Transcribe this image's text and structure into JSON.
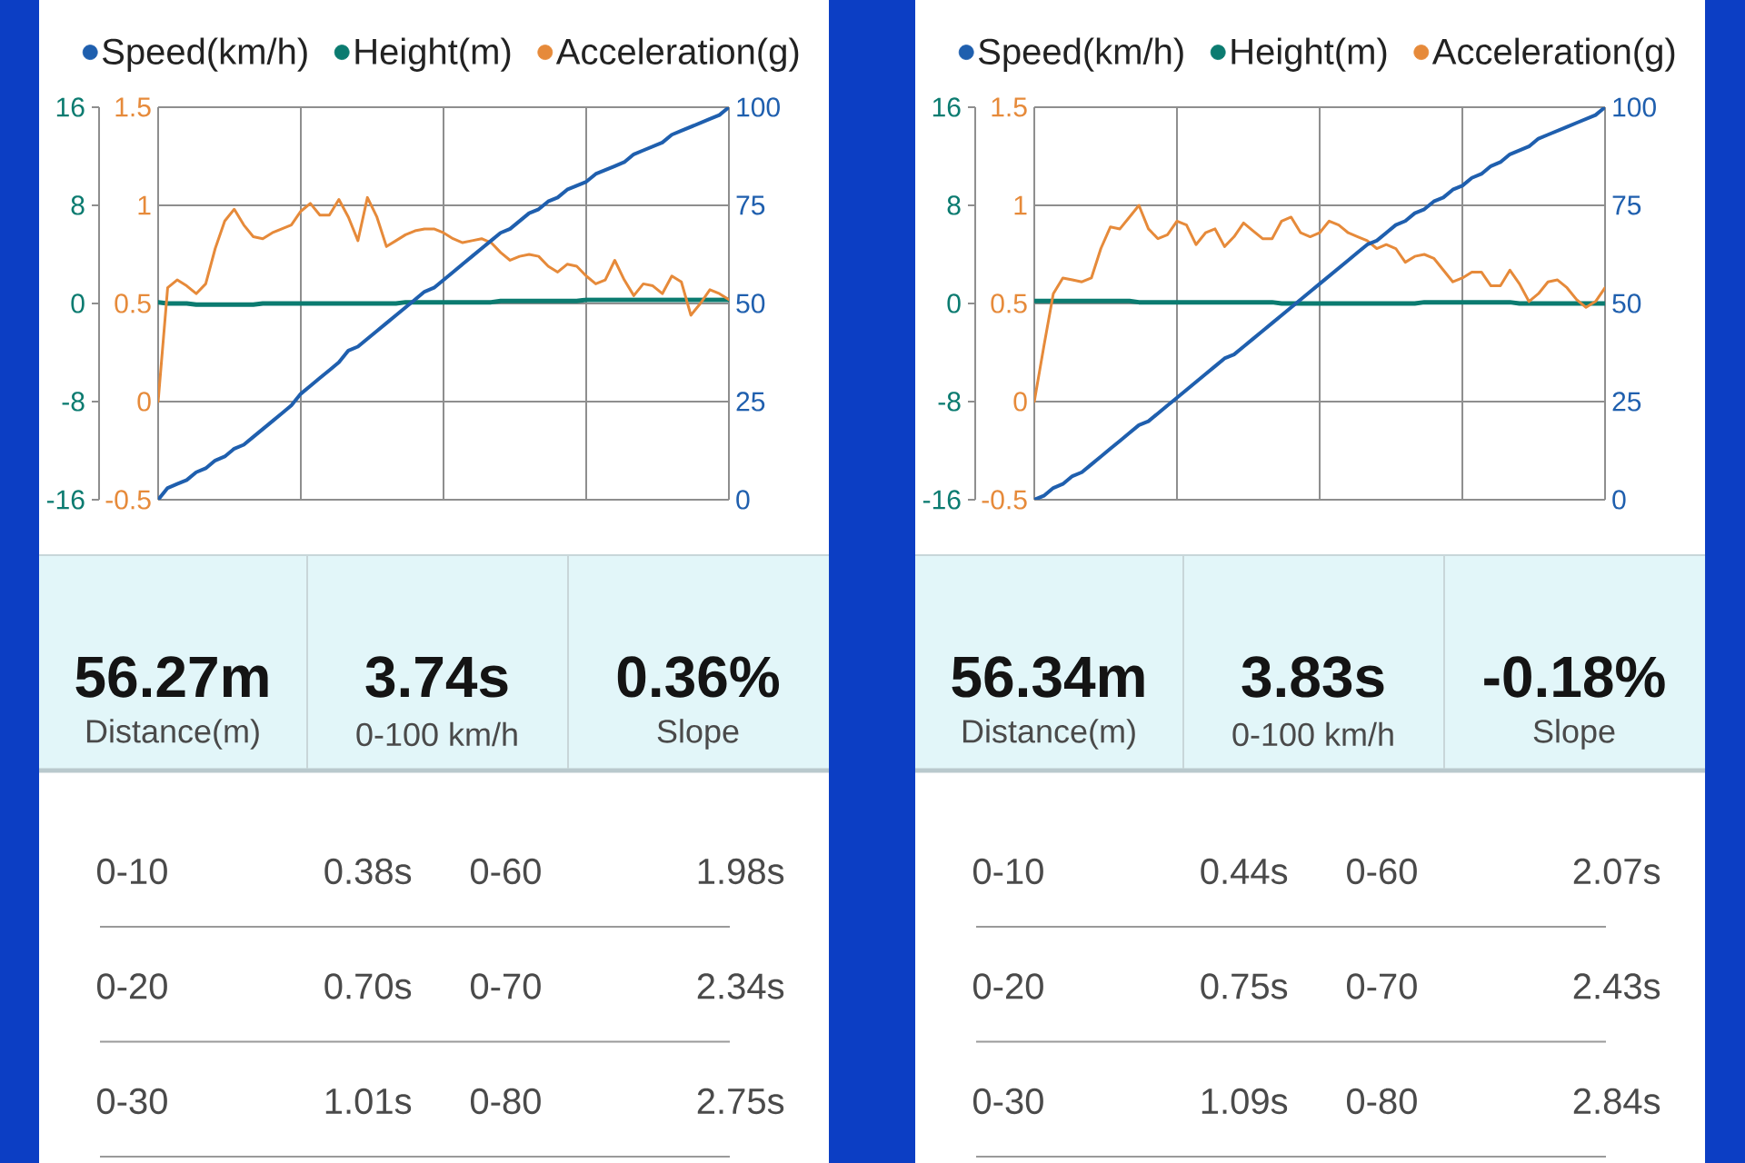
{
  "chart_data": [
    {
      "type": "line",
      "categories": [
        null,
        null,
        null,
        null,
        null,
        null,
        null,
        null,
        null,
        null,
        null,
        null,
        null,
        null,
        null,
        null,
        null,
        null,
        null,
        null,
        null,
        null,
        null,
        null,
        null,
        null,
        null,
        null,
        null,
        null,
        null,
        null,
        null,
        null,
        null,
        null,
        null,
        null,
        null,
        null,
        null,
        null,
        null,
        null,
        null,
        null,
        null,
        null,
        null,
        null,
        null,
        null,
        null,
        null,
        null,
        null,
        null,
        null,
        null,
        null,
        null
      ],
      "series": [
        {
          "name": "Speed(km/h)",
          "color": "#1f5fae",
          "axis": "y2",
          "values": [
            0,
            3,
            4,
            5,
            7,
            8,
            10,
            11,
            13,
            14,
            16,
            18,
            20,
            22,
            24,
            27,
            29,
            31,
            33,
            35,
            38,
            39,
            41,
            43,
            45,
            47,
            49,
            51,
            53,
            54,
            56,
            58,
            60,
            62,
            64,
            66,
            68,
            69,
            71,
            73,
            74,
            76,
            77,
            79,
            80,
            81,
            83,
            84,
            85,
            86,
            88,
            89,
            90,
            91,
            93,
            94,
            95,
            96,
            97,
            98,
            100
          ]
        },
        {
          "name": "Height(m)",
          "color": "#0b7b70",
          "values": [
            0.1,
            0,
            0,
            0,
            -0.1,
            -0.1,
            -0.1,
            -0.1,
            -0.1,
            -0.1,
            -0.1,
            0,
            0,
            0,
            0,
            0,
            0,
            0,
            0,
            0,
            0,
            0,
            0,
            0,
            0,
            0,
            0.1,
            0.1,
            0.1,
            0.1,
            0.1,
            0.1,
            0.1,
            0.1,
            0.1,
            0.1,
            0.2,
            0.2,
            0.2,
            0.2,
            0.2,
            0.2,
            0.2,
            0.2,
            0.2,
            0.3,
            0.3,
            0.3,
            0.3,
            0.3,
            0.3,
            0.3,
            0.3,
            0.3,
            0.3,
            0.3,
            0.3,
            0.3,
            0.3,
            0.3,
            0.3
          ]
        },
        {
          "name": "Acceleration(g)",
          "color": "#e68a3a",
          "axis": "y3",
          "values": [
            0,
            0.58,
            0.62,
            0.59,
            0.55,
            0.6,
            0.78,
            0.92,
            0.98,
            0.9,
            0.84,
            0.83,
            0.86,
            0.88,
            0.9,
            0.97,
            1.01,
            0.95,
            0.95,
            1.03,
            0.94,
            0.82,
            1.04,
            0.94,
            0.79,
            0.82,
            0.85,
            0.87,
            0.88,
            0.88,
            0.86,
            0.83,
            0.81,
            0.82,
            0.83,
            0.81,
            0.76,
            0.72,
            0.74,
            0.75,
            0.74,
            0.69,
            0.66,
            0.7,
            0.69,
            0.64,
            0.6,
            0.62,
            0.72,
            0.62,
            0.54,
            0.6,
            0.59,
            0.55,
            0.64,
            0.61,
            0.44,
            0.5,
            0.57,
            0.55,
            0.52
          ]
        }
      ],
      "ylim": [
        -16,
        16
      ],
      "yticks": [
        -16,
        -8,
        0,
        8,
        16
      ],
      "y2lim": [
        0,
        100
      ],
      "y2ticks": [
        0,
        25,
        50,
        75,
        100
      ],
      "y3lim": [
        -0.5,
        1.5
      ],
      "y3ticks": [
        -0.5,
        0,
        0.5,
        1,
        1.5
      ],
      "grid": true,
      "legend": "top"
    },
    {
      "type": "other",
      "annotations": [
        "56.27m",
        "Distance(m)",
        "3.74s",
        "0-100 km/h",
        "0.36%",
        "Slope",
        "0-10",
        "0.38s",
        "0-60",
        "1.98s",
        "0-20",
        "0.70s",
        "0-70",
        "2.34s",
        "0-30",
        "1.01s",
        "0-80",
        "2.75s"
      ]
    },
    {
      "type": "line",
      "categories": [
        null,
        null,
        null,
        null,
        null,
        null,
        null,
        null,
        null,
        null,
        null,
        null,
        null,
        null,
        null,
        null,
        null,
        null,
        null,
        null,
        null,
        null,
        null,
        null,
        null,
        null,
        null,
        null,
        null,
        null,
        null,
        null,
        null,
        null,
        null,
        null,
        null,
        null,
        null,
        null,
        null,
        null,
        null,
        null,
        null,
        null,
        null,
        null,
        null,
        null,
        null,
        null,
        null,
        null,
        null,
        null,
        null,
        null,
        null,
        null,
        null
      ],
      "series": [
        {
          "name": "Speed(km/h)",
          "color": "#1f5fae",
          "axis": "y2",
          "values": [
            0,
            1,
            3,
            4,
            6,
            7,
            9,
            11,
            13,
            15,
            17,
            19,
            20,
            22,
            24,
            26,
            28,
            30,
            32,
            34,
            36,
            37,
            39,
            41,
            43,
            45,
            47,
            49,
            51,
            53,
            55,
            57,
            59,
            61,
            63,
            65,
            66,
            68,
            70,
            71,
            73,
            74,
            76,
            77,
            79,
            80,
            82,
            83,
            85,
            86,
            88,
            89,
            90,
            92,
            93,
            94,
            95,
            96,
            97,
            98,
            100
          ]
        },
        {
          "name": "Height(m)",
          "color": "#0b7b70",
          "values": [
            0.2,
            0.2,
            0.2,
            0.2,
            0.2,
            0.2,
            0.2,
            0.2,
            0.2,
            0.2,
            0.2,
            0.1,
            0.1,
            0.1,
            0.1,
            0.1,
            0.1,
            0.1,
            0.1,
            0.1,
            0.1,
            0.1,
            0.1,
            0.1,
            0.1,
            0.1,
            0,
            0,
            0,
            0,
            0,
            0,
            0,
            0,
            0,
            0,
            0,
            0,
            0,
            0,
            0,
            0.1,
            0.1,
            0.1,
            0.1,
            0.1,
            0.1,
            0.1,
            0.1,
            0.1,
            0.1,
            0,
            0,
            0,
            0,
            0,
            0,
            0,
            0,
            0,
            0
          ]
        },
        {
          "name": "Acceleration(g)",
          "color": "#e68a3a",
          "axis": "y3",
          "values": [
            0,
            0.28,
            0.55,
            0.63,
            0.62,
            0.61,
            0.63,
            0.78,
            0.89,
            0.88,
            0.94,
            1.0,
            0.88,
            0.83,
            0.85,
            0.92,
            0.9,
            0.8,
            0.86,
            0.88,
            0.79,
            0.84,
            0.91,
            0.87,
            0.83,
            0.83,
            0.92,
            0.94,
            0.86,
            0.84,
            0.86,
            0.92,
            0.9,
            0.86,
            0.84,
            0.82,
            0.78,
            0.8,
            0.78,
            0.71,
            0.74,
            0.75,
            0.73,
            0.67,
            0.61,
            0.63,
            0.66,
            0.66,
            0.59,
            0.59,
            0.67,
            0.6,
            0.51,
            0.55,
            0.61,
            0.62,
            0.58,
            0.52,
            0.48,
            0.51,
            0.58
          ]
        }
      ],
      "ylim": [
        -16,
        16
      ],
      "yticks": [
        -16,
        -8,
        0,
        8,
        16
      ],
      "y2lim": [
        0,
        100
      ],
      "y2ticks": [
        0,
        25,
        50,
        75,
        100
      ],
      "y3lim": [
        -0.5,
        1.5
      ],
      "y3ticks": [
        -0.5,
        0,
        0.5,
        1,
        1.5
      ],
      "grid": true,
      "legend": "top"
    },
    {
      "type": "other",
      "annotations": [
        "56.34m",
        "Distance(m)",
        "3.83s",
        "0-100 km/h",
        "-0.18%",
        "Slope",
        "0-10",
        "0.44s",
        "0-60",
        "2.07s",
        "0-20",
        "0.75s",
        "0-70",
        "2.43s",
        "0-30",
        "1.09s",
        "0-80",
        "2.84s"
      ]
    }
  ]
}
